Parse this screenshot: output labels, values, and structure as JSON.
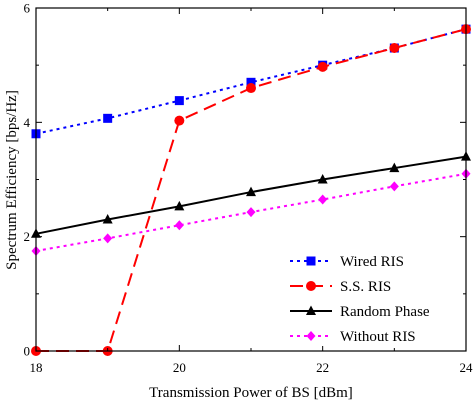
{
  "chart_data": {
    "type": "line",
    "title": "",
    "xlabel": "Transmission Power of BS [dBm]",
    "ylabel": "Spectrum Efficiency [bps/Hz]",
    "xlim": [
      18,
      24
    ],
    "ylim": [
      0,
      6
    ],
    "xticks": [
      18,
      20,
      22,
      24
    ],
    "yticks": [
      0,
      2,
      4,
      6
    ],
    "grid": false,
    "legend_position": "bottom-right",
    "x": [
      18,
      19,
      20,
      21,
      22,
      23,
      24
    ],
    "series": [
      {
        "name": "Wired RIS",
        "color": "#0000ff",
        "line_style": "dotted",
        "marker": "square",
        "values": [
          3.8,
          4.07,
          4.38,
          4.7,
          5.0,
          5.3,
          5.63
        ]
      },
      {
        "name": "S.S. RIS",
        "color": "#ff0000",
        "line_style": "dashed",
        "marker": "circle",
        "values": [
          0.0,
          0.0,
          4.03,
          4.6,
          4.97,
          5.3,
          5.63
        ]
      },
      {
        "name": "Random Phase",
        "color": "#000000",
        "line_style": "solid",
        "marker": "triangle",
        "values": [
          2.05,
          2.3,
          2.53,
          2.78,
          3.0,
          3.2,
          3.4
        ]
      },
      {
        "name": "Without RIS",
        "color": "#ff00ff",
        "line_style": "dotted",
        "marker": "diamond",
        "values": [
          1.75,
          1.97,
          2.2,
          2.43,
          2.65,
          2.88,
          3.1
        ]
      }
    ]
  }
}
